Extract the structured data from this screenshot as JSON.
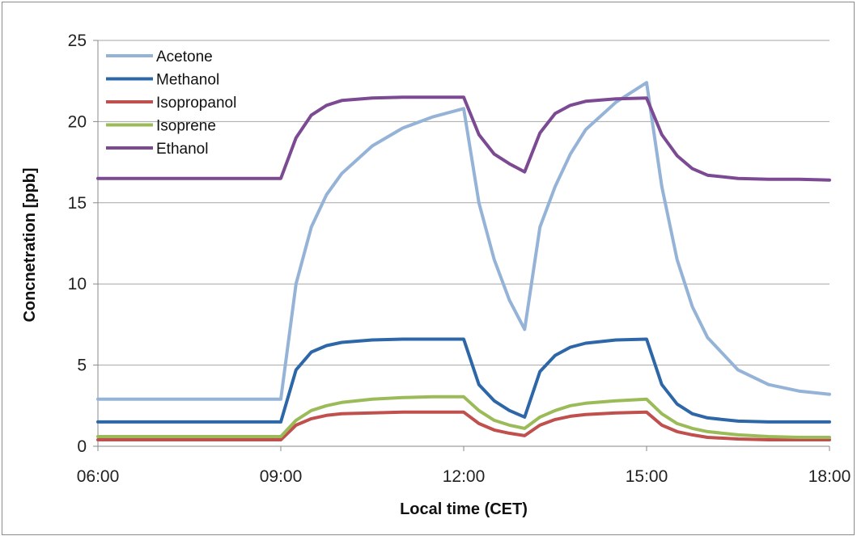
{
  "chart_data": {
    "type": "line",
    "title": "",
    "xlabel": "Local time (CET)",
    "ylabel": "Concnetration [ppb]",
    "xlim": [
      "06:00",
      "18:00"
    ],
    "ylim": [
      0,
      25
    ],
    "grid": true,
    "legend_position": "top-left",
    "x_ticks": [
      "06:00",
      "09:00",
      "12:00",
      "15:00",
      "18:00"
    ],
    "y_ticks": [
      "0",
      "5",
      "10",
      "15",
      "20",
      "25"
    ],
    "x": [
      "06:00",
      "06:30",
      "07:00",
      "07:30",
      "08:00",
      "08:30",
      "09:00",
      "09:15",
      "09:30",
      "09:45",
      "10:00",
      "10:30",
      "11:00",
      "11:30",
      "12:00",
      "12:15",
      "12:30",
      "12:45",
      "13:00",
      "13:15",
      "13:30",
      "13:45",
      "14:00",
      "14:30",
      "15:00",
      "15:15",
      "15:30",
      "15:45",
      "16:00",
      "16:30",
      "17:00",
      "17:30",
      "18:00"
    ],
    "series": [
      {
        "name": "Acetone",
        "color": "#95b3d7",
        "values": [
          2.9,
          2.9,
          2.9,
          2.9,
          2.9,
          2.9,
          2.9,
          10.0,
          13.5,
          15.5,
          16.8,
          18.5,
          19.6,
          20.3,
          20.8,
          15.0,
          11.5,
          9.0,
          7.2,
          13.5,
          16.0,
          18.0,
          19.5,
          21.2,
          22.4,
          16.0,
          11.5,
          8.6,
          6.7,
          4.7,
          3.8,
          3.4,
          3.2
        ]
      },
      {
        "name": "Methanol",
        "color": "#2e67a8",
        "values": [
          1.5,
          1.5,
          1.5,
          1.5,
          1.5,
          1.5,
          1.5,
          4.7,
          5.8,
          6.2,
          6.4,
          6.55,
          6.6,
          6.6,
          6.6,
          3.8,
          2.8,
          2.2,
          1.8,
          4.6,
          5.6,
          6.1,
          6.35,
          6.55,
          6.6,
          3.8,
          2.6,
          2.0,
          1.75,
          1.55,
          1.5,
          1.5,
          1.5
        ]
      },
      {
        "name": "Isopropanol",
        "color": "#c0504d",
        "values": [
          0.4,
          0.4,
          0.4,
          0.4,
          0.4,
          0.4,
          0.4,
          1.3,
          1.7,
          1.9,
          2.0,
          2.05,
          2.1,
          2.1,
          2.1,
          1.4,
          1.0,
          0.8,
          0.65,
          1.3,
          1.65,
          1.85,
          1.95,
          2.05,
          2.1,
          1.3,
          0.9,
          0.7,
          0.55,
          0.45,
          0.4,
          0.4,
          0.4
        ]
      },
      {
        "name": "Isoprene",
        "color": "#9bbb59",
        "values": [
          0.6,
          0.6,
          0.6,
          0.6,
          0.6,
          0.6,
          0.6,
          1.6,
          2.2,
          2.5,
          2.7,
          2.9,
          3.0,
          3.05,
          3.05,
          2.2,
          1.6,
          1.3,
          1.1,
          1.8,
          2.2,
          2.5,
          2.65,
          2.8,
          2.9,
          2.0,
          1.4,
          1.1,
          0.9,
          0.7,
          0.6,
          0.55,
          0.55
        ]
      },
      {
        "name": "Ethanol",
        "color": "#7c4a93",
        "values": [
          16.5,
          16.5,
          16.5,
          16.5,
          16.5,
          16.5,
          16.5,
          19.0,
          20.4,
          21.0,
          21.3,
          21.45,
          21.5,
          21.5,
          21.5,
          19.2,
          18.0,
          17.4,
          16.9,
          19.3,
          20.5,
          21.0,
          21.25,
          21.4,
          21.45,
          19.2,
          17.9,
          17.1,
          16.7,
          16.5,
          16.45,
          16.45,
          16.4
        ]
      }
    ]
  }
}
